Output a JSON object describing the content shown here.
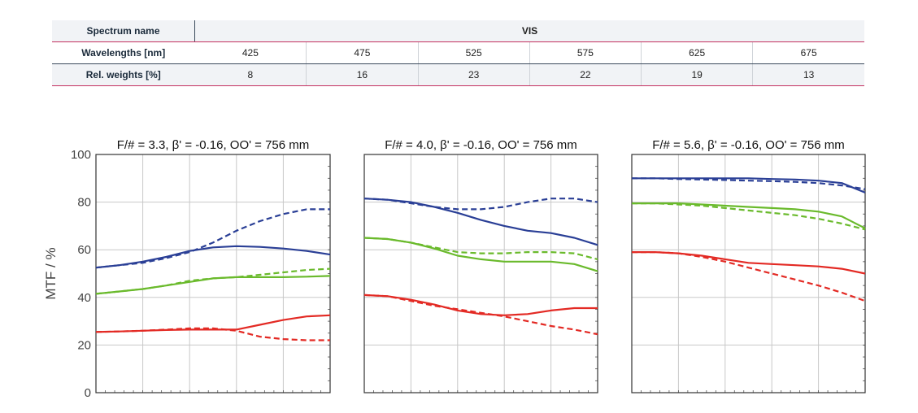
{
  "table": {
    "rows": [
      {
        "label": "Spectrum name",
        "values": [
          "VIS"
        ]
      },
      {
        "label": "Wavelengths [nm]",
        "values": [
          "425",
          "475",
          "525",
          "575",
          "625",
          "675"
        ]
      },
      {
        "label": "Rel. weights [%]",
        "values": [
          "8",
          "16",
          "23",
          "22",
          "19",
          "13"
        ]
      }
    ]
  },
  "colors": {
    "blue": "#2a3f96",
    "green": "#6aba2c",
    "red": "#e32a24"
  },
  "chart_data": [
    {
      "type": "line",
      "title": "F/# = 3.3, β' = -0.16, OO' = 756 mm",
      "ylabel": "MTF / %",
      "ylim": [
        0,
        100
      ],
      "yticks": [
        "0",
        "20",
        "40",
        "60",
        "80",
        "100"
      ],
      "xlim": [
        0,
        1
      ],
      "grid": true,
      "series": [
        {
          "color": "blue",
          "style": "solid",
          "x": [
            0,
            0.1,
            0.2,
            0.3,
            0.4,
            0.5,
            0.6,
            0.7,
            0.8,
            0.9,
            1
          ],
          "y": [
            52.5,
            53.5,
            55,
            57,
            59.5,
            61,
            61.5,
            61.2,
            60.5,
            59.5,
            58
          ]
        },
        {
          "color": "blue",
          "style": "dashed",
          "x": [
            0,
            0.1,
            0.2,
            0.3,
            0.4,
            0.5,
            0.6,
            0.7,
            0.8,
            0.9,
            1
          ],
          "y": [
            52.5,
            53.5,
            54.5,
            56.5,
            59,
            63,
            68,
            72,
            75,
            77,
            77
          ]
        },
        {
          "color": "green",
          "style": "solid",
          "x": [
            0,
            0.1,
            0.2,
            0.3,
            0.4,
            0.5,
            0.6,
            0.7,
            0.8,
            0.9,
            1
          ],
          "y": [
            41.5,
            42.5,
            43.5,
            45,
            46.5,
            48,
            48.5,
            48.5,
            48.5,
            48.7,
            49
          ]
        },
        {
          "color": "green",
          "style": "dashed",
          "x": [
            0,
            0.1,
            0.2,
            0.3,
            0.4,
            0.5,
            0.6,
            0.7,
            0.8,
            0.9,
            1
          ],
          "y": [
            41.5,
            42.5,
            43.5,
            45,
            47,
            48,
            48.5,
            49.5,
            50.5,
            51.5,
            52
          ]
        },
        {
          "color": "red",
          "style": "solid",
          "x": [
            0,
            0.1,
            0.2,
            0.3,
            0.4,
            0.5,
            0.6,
            0.7,
            0.8,
            0.9,
            1
          ],
          "y": [
            25.5,
            25.7,
            26,
            26.3,
            26.5,
            26.5,
            26.5,
            28.5,
            30.5,
            32,
            32.5
          ]
        },
        {
          "color": "red",
          "style": "dashed",
          "x": [
            0,
            0.1,
            0.2,
            0.3,
            0.4,
            0.5,
            0.6,
            0.7,
            0.8,
            0.9,
            1
          ],
          "y": [
            25.5,
            25.7,
            26,
            26.5,
            27,
            27,
            26,
            23.5,
            22.5,
            22,
            22
          ]
        }
      ]
    },
    {
      "type": "line",
      "title": "F/# = 4.0, β' = -0.16, OO' = 756 mm",
      "ylim": [
        0,
        100
      ],
      "xlim": [
        0,
        1
      ],
      "grid": true,
      "series": [
        {
          "color": "blue",
          "style": "solid",
          "x": [
            0,
            0.1,
            0.2,
            0.3,
            0.4,
            0.5,
            0.6,
            0.7,
            0.8,
            0.9,
            1
          ],
          "y": [
            81.5,
            81,
            80,
            78,
            75.5,
            72.5,
            70,
            68,
            67,
            65,
            62
          ]
        },
        {
          "color": "blue",
          "style": "dashed",
          "x": [
            0,
            0.1,
            0.2,
            0.3,
            0.4,
            0.5,
            0.6,
            0.7,
            0.8,
            0.9,
            1
          ],
          "y": [
            81.5,
            81,
            79.5,
            78,
            77,
            77,
            78,
            80,
            81.5,
            81.5,
            80
          ]
        },
        {
          "color": "green",
          "style": "solid",
          "x": [
            0,
            0.1,
            0.2,
            0.3,
            0.4,
            0.5,
            0.6,
            0.7,
            0.8,
            0.9,
            1
          ],
          "y": [
            65,
            64.5,
            63,
            60.5,
            57.5,
            56,
            55,
            55,
            55,
            54,
            51
          ]
        },
        {
          "color": "green",
          "style": "dashed",
          "x": [
            0,
            0.1,
            0.2,
            0.3,
            0.4,
            0.5,
            0.6,
            0.7,
            0.8,
            0.9,
            1
          ],
          "y": [
            65,
            64.5,
            63,
            61,
            59,
            58.5,
            58.5,
            59,
            59,
            58.5,
            56
          ]
        },
        {
          "color": "red",
          "style": "solid",
          "x": [
            0,
            0.1,
            0.2,
            0.3,
            0.4,
            0.5,
            0.6,
            0.7,
            0.8,
            0.9,
            1
          ],
          "y": [
            41,
            40.5,
            39,
            37,
            34.5,
            33,
            32.5,
            33,
            34.5,
            35.5,
            35.5
          ]
        },
        {
          "color": "red",
          "style": "dashed",
          "x": [
            0,
            0.1,
            0.2,
            0.3,
            0.4,
            0.5,
            0.6,
            0.7,
            0.8,
            0.9,
            1
          ],
          "y": [
            41,
            40.5,
            38.5,
            36.5,
            35,
            33.5,
            32,
            30,
            28,
            26.5,
            24.5
          ]
        }
      ]
    },
    {
      "type": "line",
      "title": "F/# = 5.6, β' = -0.16, OO' = 756 mm",
      "ylim": [
        0,
        100
      ],
      "xlim": [
        0,
        1
      ],
      "grid": true,
      "series": [
        {
          "color": "blue",
          "style": "solid",
          "x": [
            0,
            0.1,
            0.2,
            0.3,
            0.4,
            0.5,
            0.6,
            0.7,
            0.8,
            0.9,
            1
          ],
          "y": [
            90,
            90,
            90,
            90,
            90,
            90,
            89.7,
            89.5,
            89,
            88,
            84
          ]
        },
        {
          "color": "blue",
          "style": "dashed",
          "x": [
            0,
            0.1,
            0.2,
            0.3,
            0.4,
            0.5,
            0.6,
            0.7,
            0.8,
            0.9,
            1
          ],
          "y": [
            90,
            90,
            89.7,
            89.5,
            89.3,
            89,
            88.8,
            88.5,
            88,
            87,
            85.5
          ]
        },
        {
          "color": "green",
          "style": "solid",
          "x": [
            0,
            0.1,
            0.2,
            0.3,
            0.4,
            0.5,
            0.6,
            0.7,
            0.8,
            0.9,
            1
          ],
          "y": [
            79.5,
            79.5,
            79.5,
            79,
            78.5,
            78,
            77.5,
            77,
            76,
            74,
            69
          ]
        },
        {
          "color": "green",
          "style": "dashed",
          "x": [
            0,
            0.1,
            0.2,
            0.3,
            0.4,
            0.5,
            0.6,
            0.7,
            0.8,
            0.9,
            1
          ],
          "y": [
            79.5,
            79.5,
            79,
            78.5,
            77.5,
            76.5,
            75.5,
            74.5,
            73,
            71,
            68.5
          ]
        },
        {
          "color": "red",
          "style": "solid",
          "x": [
            0,
            0.1,
            0.2,
            0.3,
            0.4,
            0.5,
            0.6,
            0.7,
            0.8,
            0.9,
            1
          ],
          "y": [
            59,
            59,
            58.5,
            57.5,
            56,
            54.5,
            54,
            53.5,
            53,
            52,
            50
          ]
        },
        {
          "color": "red",
          "style": "dashed",
          "x": [
            0,
            0.1,
            0.2,
            0.3,
            0.4,
            0.5,
            0.6,
            0.7,
            0.8,
            0.9,
            1
          ],
          "y": [
            59,
            59,
            58.5,
            57,
            55,
            52.5,
            50,
            47.5,
            45,
            42,
            38.5
          ]
        }
      ]
    }
  ]
}
